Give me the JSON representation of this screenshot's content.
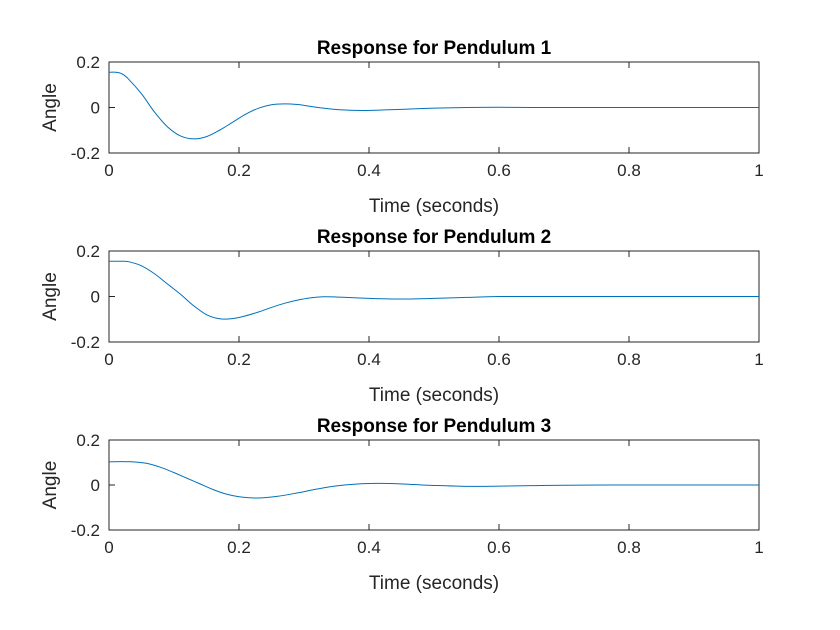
{
  "chart_data": [
    {
      "type": "line",
      "title": "Response for Pendulum 1",
      "xlabel": "Time (seconds)",
      "ylabel": "Angle",
      "xlim": [
        0,
        1
      ],
      "ylim": [
        -0.2,
        0.2
      ],
      "xticks": [
        "0",
        "0.2",
        "0.4",
        "0.6",
        "0.8",
        "1"
      ],
      "yticks": [
        "-0.2",
        "0",
        "0.2"
      ],
      "grid": false,
      "series": [
        {
          "color": "#0072BD",
          "x": [
            0,
            0.01,
            0.02,
            0.03,
            0.05,
            0.07,
            0.09,
            0.11,
            0.13,
            0.15,
            0.17,
            0.19,
            0.21,
            0.23,
            0.25,
            0.27,
            0.29,
            0.31,
            0.33,
            0.35,
            0.37,
            0.39,
            0.41,
            0.45,
            0.5,
            0.55,
            0.6,
            0.65,
            0.7,
            0.8,
            0.9,
            1.0
          ],
          "y": [
            0.155,
            0.155,
            0.148,
            0.125,
            0.06,
            -0.02,
            -0.085,
            -0.125,
            -0.138,
            -0.128,
            -0.1,
            -0.065,
            -0.03,
            -0.003,
            0.012,
            0.016,
            0.013,
            0.005,
            -0.003,
            -0.009,
            -0.012,
            -0.013,
            -0.012,
            -0.008,
            -0.003,
            0.0,
            0.001,
            0.0,
            0.0,
            0.0,
            0.0,
            0.0
          ]
        }
      ]
    },
    {
      "type": "line",
      "title": "Response for Pendulum 2",
      "xlabel": "Time (seconds)",
      "ylabel": "Angle",
      "xlim": [
        0,
        1
      ],
      "ylim": [
        -0.2,
        0.2
      ],
      "xticks": [
        "0",
        "0.2",
        "0.4",
        "0.6",
        "0.8",
        "1"
      ],
      "yticks": [
        "-0.2",
        "0",
        "0.2"
      ],
      "grid": false,
      "series": [
        {
          "color": "#0072BD",
          "x": [
            0,
            0.02,
            0.03,
            0.05,
            0.07,
            0.09,
            0.11,
            0.13,
            0.15,
            0.17,
            0.19,
            0.21,
            0.23,
            0.25,
            0.27,
            0.29,
            0.31,
            0.33,
            0.35,
            0.38,
            0.42,
            0.46,
            0.5,
            0.55,
            0.6,
            0.7,
            0.8,
            0.9,
            1.0
          ],
          "y": [
            0.155,
            0.155,
            0.153,
            0.135,
            0.1,
            0.055,
            0.01,
            -0.04,
            -0.08,
            -0.098,
            -0.097,
            -0.085,
            -0.068,
            -0.048,
            -0.03,
            -0.016,
            -0.006,
            -0.001,
            -0.002,
            -0.006,
            -0.01,
            -0.011,
            -0.008,
            -0.004,
            0.0,
            0.0,
            0.0,
            0.0,
            0.0
          ]
        }
      ]
    },
    {
      "type": "line",
      "title": "Response for Pendulum 3",
      "xlabel": "Time (seconds)",
      "ylabel": "Angle",
      "xlim": [
        0,
        1
      ],
      "ylim": [
        -0.2,
        0.2
      ],
      "xticks": [
        "0",
        "0.2",
        "0.4",
        "0.6",
        "0.8",
        "1"
      ],
      "yticks": [
        "-0.2",
        "0",
        "0.2"
      ],
      "grid": false,
      "series": [
        {
          "color": "#0072BD",
          "x": [
            0,
            0.02,
            0.04,
            0.06,
            0.08,
            0.1,
            0.12,
            0.14,
            0.16,
            0.18,
            0.2,
            0.23,
            0.26,
            0.29,
            0.32,
            0.35,
            0.38,
            0.41,
            0.44,
            0.47,
            0.5,
            0.55,
            0.6,
            0.65,
            0.7,
            0.8,
            0.9,
            1.0
          ],
          "y": [
            0.103,
            0.104,
            0.102,
            0.095,
            0.078,
            0.055,
            0.03,
            0.005,
            -0.02,
            -0.04,
            -0.052,
            -0.058,
            -0.05,
            -0.035,
            -0.018,
            -0.004,
            0.004,
            0.007,
            0.006,
            0.002,
            -0.002,
            -0.006,
            -0.005,
            -0.003,
            -0.001,
            0.0,
            0.0,
            0.0
          ]
        }
      ]
    }
  ]
}
